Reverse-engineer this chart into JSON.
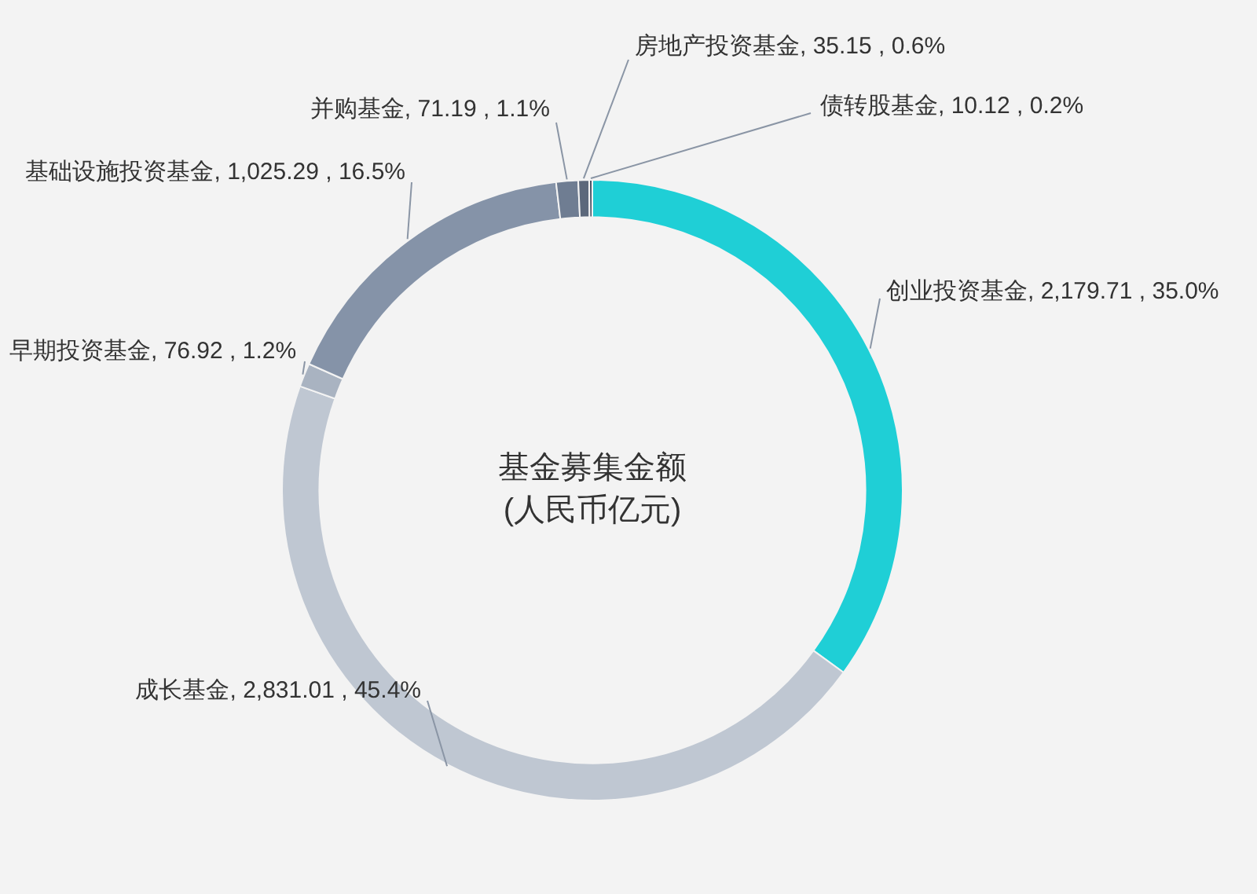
{
  "chart_data": {
    "type": "donut",
    "title": "基金募集金额\n(人民币亿元)",
    "categories": [
      "创业投资基金",
      "成长基金",
      "早期投资基金",
      "基础设施投资基金",
      "并购基金",
      "房地产投资基金",
      "债转股基金"
    ],
    "values": [
      2179.71,
      2831.01,
      76.92,
      1025.29,
      71.19,
      35.15,
      10.12
    ],
    "value_labels": [
      "2,179.71 , 35.0%",
      "2,831.01 , 45.4%",
      "76.92 , 1.2%",
      "1,025.29 , 16.5%",
      "71.19 , 1.1%",
      "35.15 , 0.6%",
      "10.12 , 0.2%"
    ],
    "colors": [
      "#1fcfd6",
      "#bfc7d2",
      "#a9b3c1",
      "#8593a8",
      "#6f7d92",
      "#5c687b",
      "#4a5466"
    ],
    "legend": false
  }
}
